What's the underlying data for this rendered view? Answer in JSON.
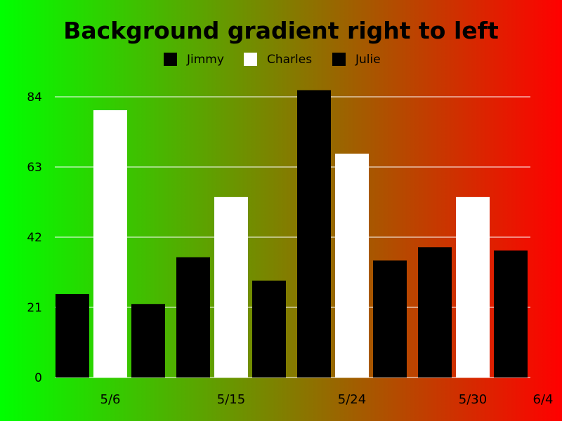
{
  "chart_data": {
    "type": "bar",
    "title": "Background gradient right to left",
    "xlabel": "",
    "ylabel": "",
    "categories": [
      "5/6",
      "5/15",
      "5/24",
      "5/30"
    ],
    "x_tick_labels": [
      "5/6",
      "5/15",
      "5/24",
      "5/30",
      "6/4"
    ],
    "y_ticks": [
      0,
      21,
      42,
      63,
      84
    ],
    "ylim": [
      0,
      84
    ],
    "grid": true,
    "legend_position": "top-center",
    "background_gradient": {
      "left": "#00ff00",
      "right": "#ff0000"
    },
    "series": [
      {
        "name": "Jimmy",
        "color": "#000000",
        "values": [
          25,
          36,
          86,
          39
        ]
      },
      {
        "name": "Charles",
        "color": "#ffffff",
        "values": [
          80,
          54,
          67,
          54
        ]
      },
      {
        "name": "Julie",
        "color": "#000000",
        "values": [
          22,
          29,
          35,
          38
        ]
      }
    ]
  }
}
